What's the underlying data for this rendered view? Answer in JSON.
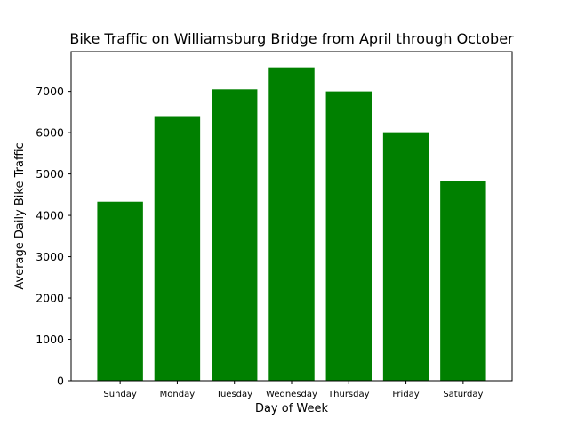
{
  "chart_data": {
    "type": "bar",
    "title": "Bike Traffic on Williamsburg Bridge from April through October",
    "xlabel": "Day of Week",
    "ylabel": "Average Daily Bike Traffic",
    "categories": [
      "Sunday",
      "Monday",
      "Tuesday",
      "Wednesday",
      "Thursday",
      "Friday",
      "Saturday"
    ],
    "values": [
      4330,
      6400,
      7050,
      7580,
      7000,
      6010,
      4830
    ],
    "ylim": [
      0,
      7960
    ],
    "yticks": [
      0,
      1000,
      2000,
      3000,
      4000,
      5000,
      6000,
      7000
    ],
    "bar_color": "#008000",
    "grid": false,
    "legend": "none"
  }
}
